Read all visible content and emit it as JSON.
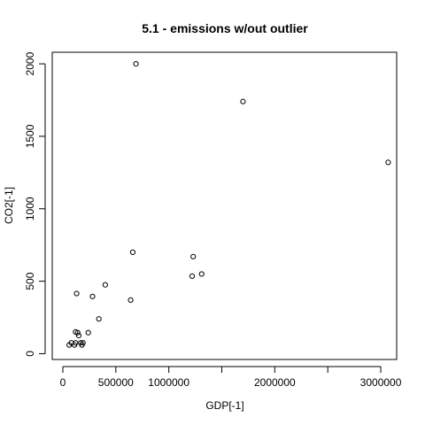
{
  "chart_data": {
    "type": "scatter",
    "title": "5.1 - emissions w/out outlier",
    "xlabel": "GDP[-1]",
    "ylabel": "CO2[-1]",
    "xlim": [
      -100000,
      3150000
    ],
    "ylim": [
      -40,
      2080
    ],
    "x_ticks": [
      0,
      500000,
      1000000,
      1500000,
      2000000,
      2500000,
      3000000
    ],
    "x_tick_labels": [
      "0",
      "500000",
      "1000000",
      "",
      "2000000",
      "",
      "3000000"
    ],
    "y_ticks": [
      0,
      500,
      1000,
      1500,
      2000
    ],
    "y_tick_labels": [
      "0",
      "500",
      "1000",
      "1500",
      "2000"
    ],
    "marker": "open-circle",
    "grid": false,
    "points": [
      {
        "x": 690000,
        "y": 2000
      },
      {
        "x": 1700000,
        "y": 1740
      },
      {
        "x": 3070000,
        "y": 1320
      },
      {
        "x": 660000,
        "y": 700
      },
      {
        "x": 1230000,
        "y": 670
      },
      {
        "x": 1310000,
        "y": 550
      },
      {
        "x": 1220000,
        "y": 535
      },
      {
        "x": 400000,
        "y": 475
      },
      {
        "x": 130000,
        "y": 415
      },
      {
        "x": 280000,
        "y": 395
      },
      {
        "x": 640000,
        "y": 370
      },
      {
        "x": 340000,
        "y": 240
      },
      {
        "x": 120000,
        "y": 150
      },
      {
        "x": 140000,
        "y": 145
      },
      {
        "x": 240000,
        "y": 145
      },
      {
        "x": 150000,
        "y": 125
      },
      {
        "x": 80000,
        "y": 75
      },
      {
        "x": 120000,
        "y": 75
      },
      {
        "x": 170000,
        "y": 75
      },
      {
        "x": 190000,
        "y": 75
      },
      {
        "x": 60000,
        "y": 60
      },
      {
        "x": 110000,
        "y": 60
      },
      {
        "x": 180000,
        "y": 60
      }
    ]
  }
}
